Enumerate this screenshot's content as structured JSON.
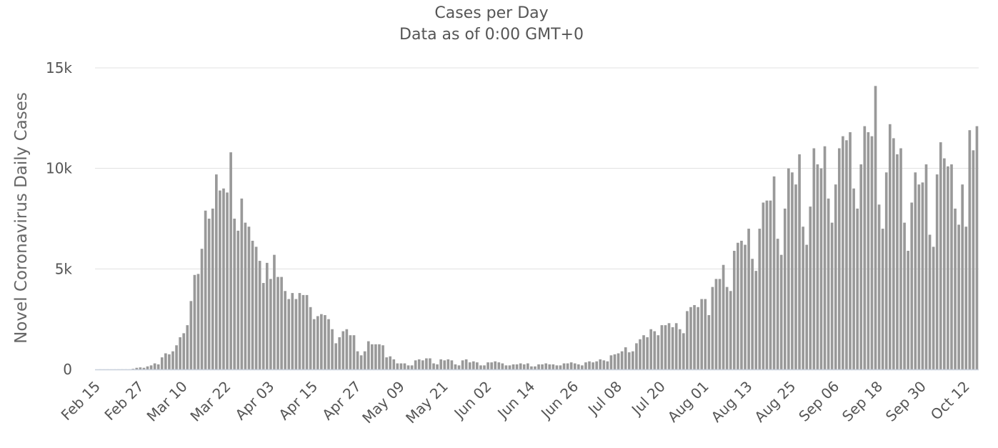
{
  "chart_data": {
    "type": "bar",
    "title": "Cases per Day",
    "subtitle": "Data as of 0:00 GMT+0",
    "xlabel": "",
    "ylabel": "Novel Coronavirus Daily Cases",
    "ylim": [
      0,
      15000
    ],
    "y_ticks": [
      {
        "value": 0,
        "label": "0"
      },
      {
        "value": 5000,
        "label": "5k"
      },
      {
        "value": 10000,
        "label": "10k"
      },
      {
        "value": 15000,
        "label": "15k"
      }
    ],
    "x_tick_labels": [
      "Feb 15",
      "Feb 27",
      "Mar 10",
      "Mar 22",
      "Apr 03",
      "Apr 15",
      "Apr 27",
      "May 09",
      "May 21",
      "Jun 02",
      "Jun 14",
      "Jun 26",
      "Jul 08",
      "Jul 20",
      "Aug 01",
      "Aug 13",
      "Aug 25",
      "Sep 06",
      "Sep 18",
      "Sep 30",
      "Oct 12"
    ],
    "tick_interval_days": 12,
    "first_category": "Feb 15",
    "values": [
      0,
      3,
      2,
      3,
      2,
      3,
      4,
      5,
      5,
      4,
      30,
      80,
      100,
      80,
      150,
      200,
      300,
      250,
      600,
      800,
      750,
      900,
      1200,
      1600,
      1800,
      2200,
      3400,
      4700,
      4750,
      6000,
      7900,
      7500,
      8000,
      9700,
      8900,
      9000,
      8800,
      10800,
      7500,
      6900,
      8500,
      7300,
      7100,
      6400,
      6100,
      5400,
      4300,
      5300,
      4500,
      5700,
      4600,
      4600,
      3900,
      3500,
      3800,
      3500,
      3800,
      3700,
      3700,
      3100,
      2500,
      2650,
      2750,
      2700,
      2500,
      2000,
      1300,
      1600,
      1900,
      2000,
      1700,
      1700,
      900,
      700,
      900,
      1400,
      1250,
      1250,
      1250,
      1200,
      600,
      650,
      500,
      300,
      300,
      300,
      200,
      200,
      450,
      500,
      450,
      550,
      550,
      300,
      250,
      500,
      450,
      500,
      450,
      250,
      200,
      450,
      500,
      350,
      400,
      350,
      200,
      200,
      350,
      350,
      400,
      350,
      300,
      200,
      200,
      250,
      250,
      300,
      250,
      300,
      150,
      150,
      250,
      250,
      300,
      250,
      250,
      200,
      200,
      300,
      300,
      350,
      300,
      250,
      200,
      350,
      400,
      350,
      400,
      500,
      450,
      400,
      700,
      750,
      800,
      900,
      1100,
      850,
      900,
      1300,
      1500,
      1700,
      1600,
      2000,
      1900,
      1700,
      2200,
      2200,
      2300,
      2100,
      2300,
      2000,
      1800,
      2900,
      3100,
      3200,
      3100,
      3500,
      3500,
      2700,
      4100,
      4500,
      4500,
      5200,
      4100,
      3900,
      5900,
      6300,
      6400,
      6200,
      7000,
      5500,
      4900,
      7000,
      8300,
      8400,
      8400,
      9600,
      6500,
      5700,
      8000,
      10000,
      9800,
      9200,
      10700,
      7100,
      6200,
      8100,
      11000,
      10200,
      10000,
      11100,
      8500,
      7300,
      9200,
      11000,
      11600,
      11400,
      11800,
      9000,
      8000,
      10200,
      12100,
      11800,
      11600,
      14100,
      8200,
      7000,
      9800,
      12200,
      11500,
      10700,
      11000,
      7300,
      5900,
      8300,
      9800,
      9200,
      9300,
      10200,
      6700,
      6100,
      9700,
      11300,
      10500,
      10100,
      10200,
      8000,
      7200,
      9200,
      7100,
      11900,
      10900,
      12100
    ]
  }
}
